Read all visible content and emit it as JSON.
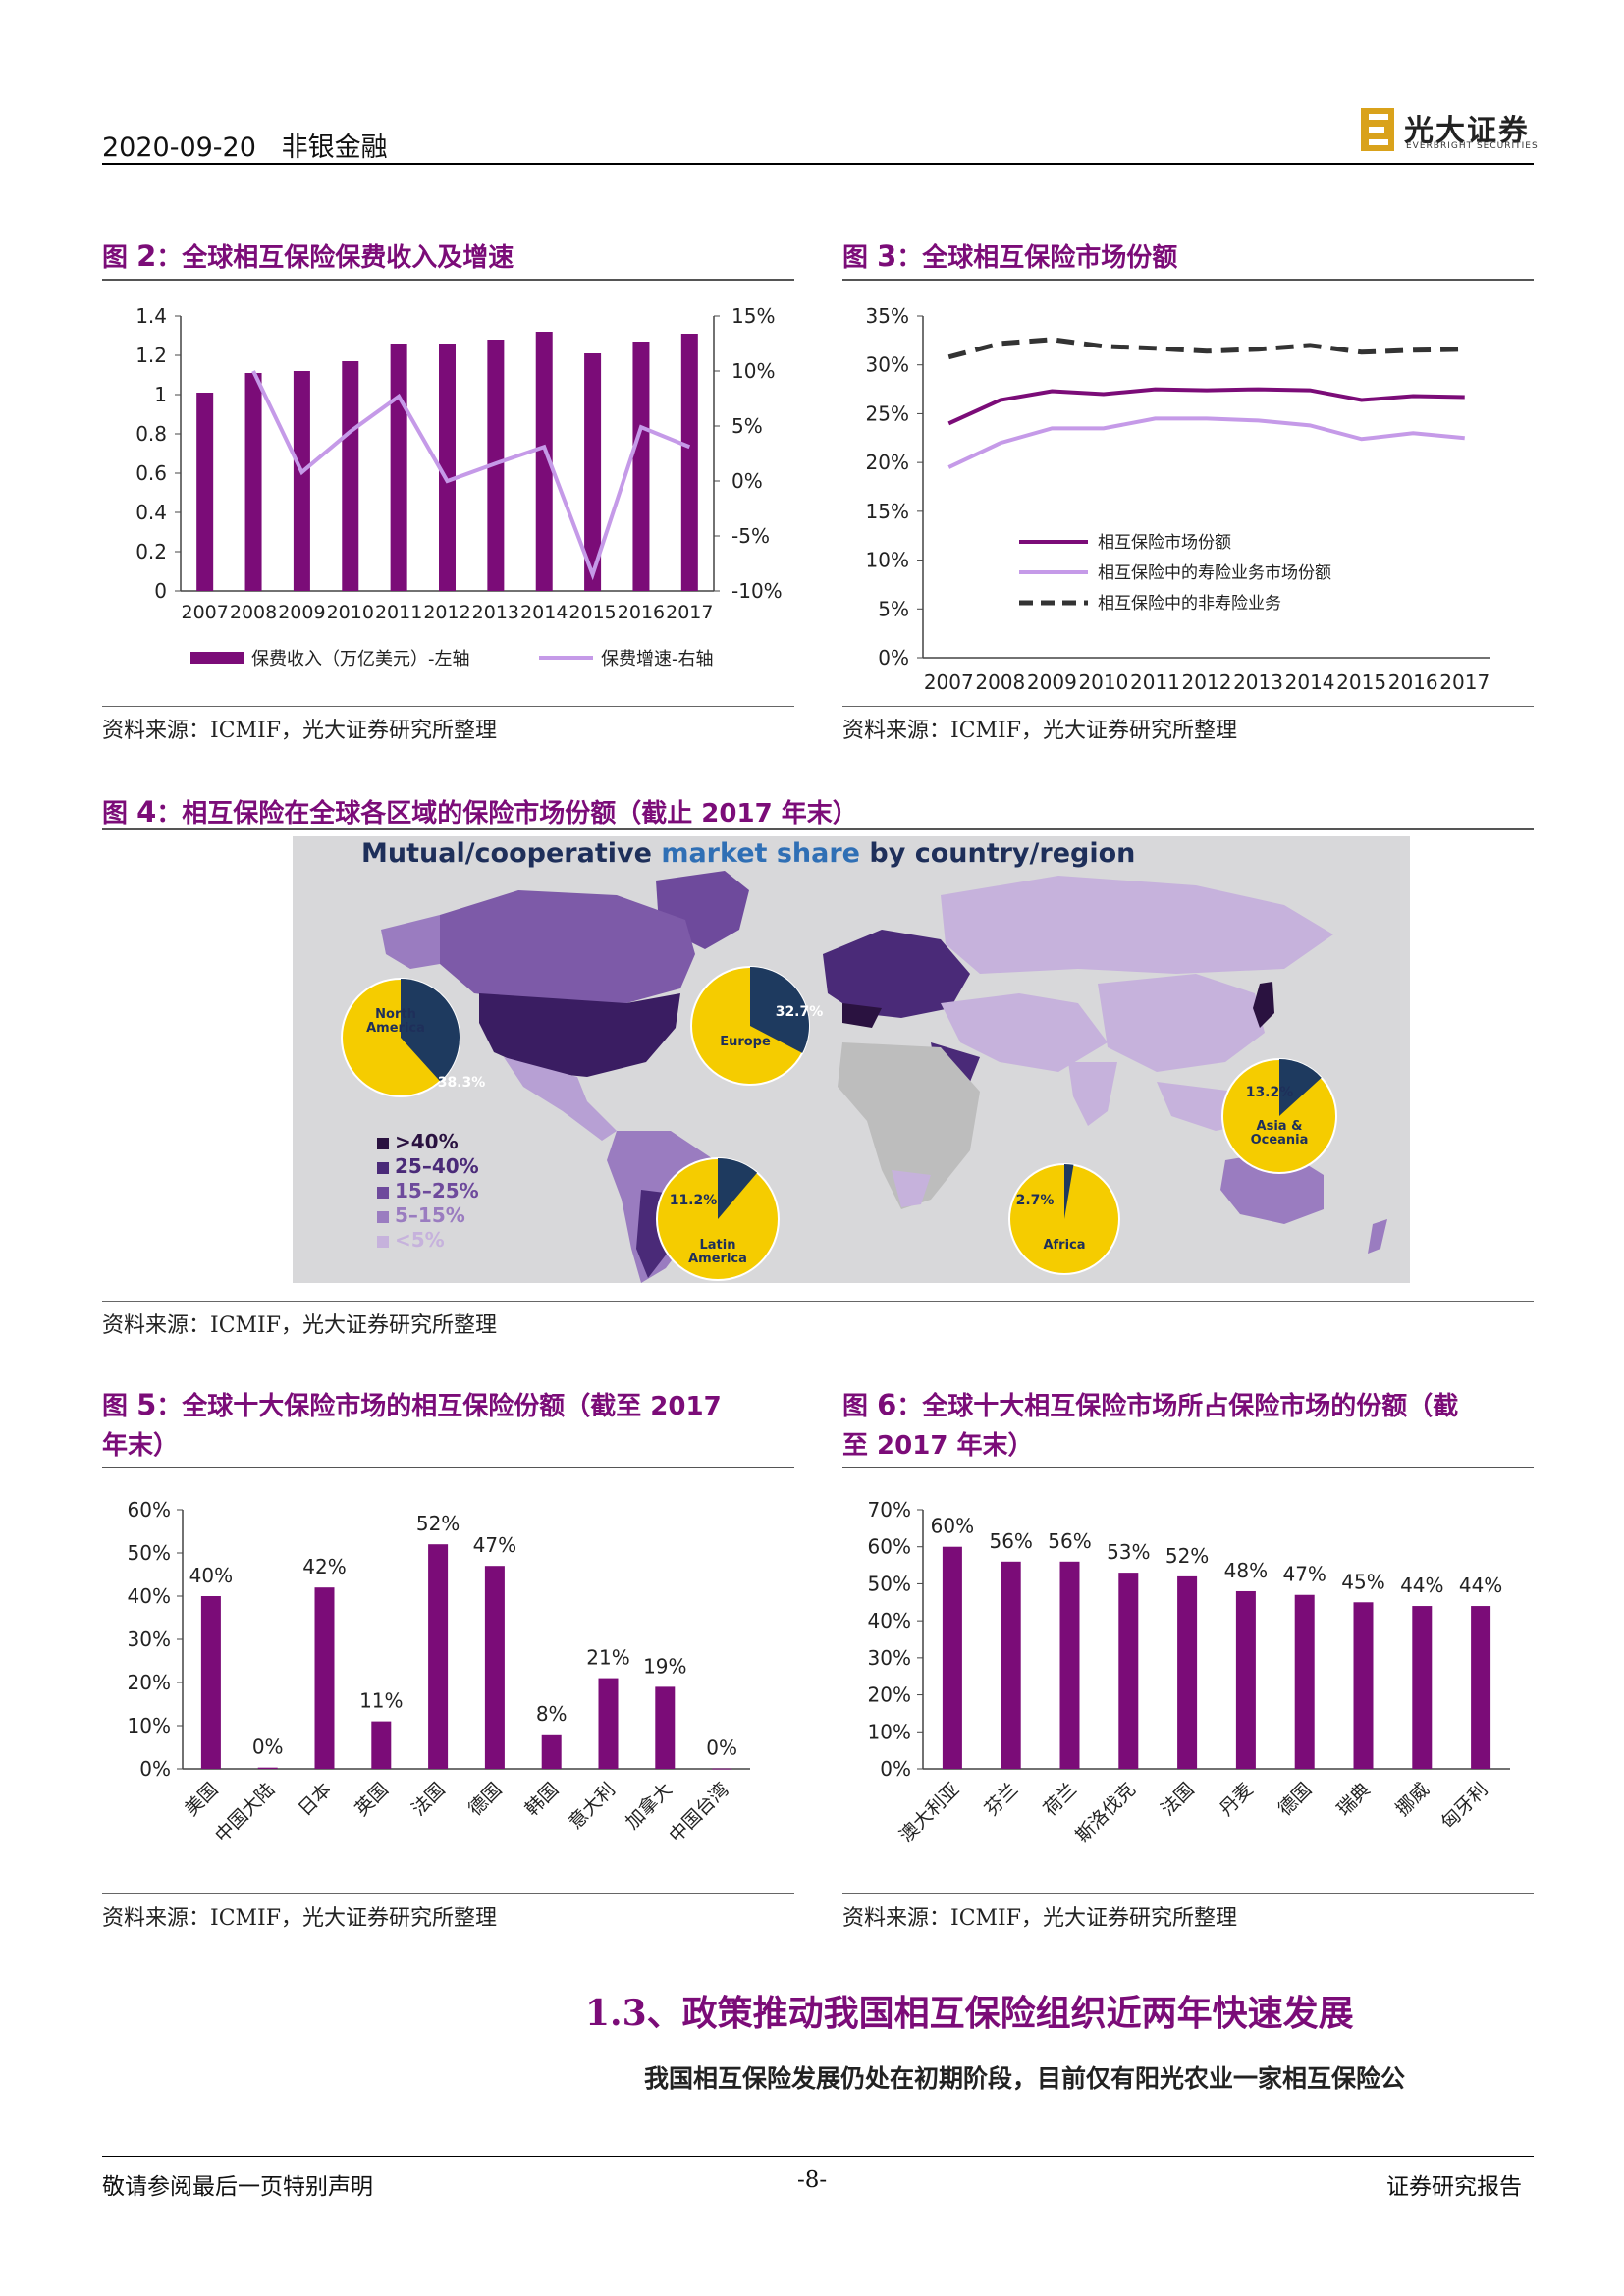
{
  "header": {
    "date": "2020-09-20",
    "section": "非银金融",
    "logo_cn": "光大证券",
    "logo_en": "EVERBRIGHT SECURITIES"
  },
  "fig2": {
    "label": "图 ",
    "num": "2",
    "title": "：全球相互保险保费收入及增速",
    "legend_bar": "保费收入（万亿美元）-左轴",
    "legend_line": "保费增速-右轴",
    "source": "资料来源：ICMIF，光大证券研究所整理"
  },
  "fig3": {
    "label": "图 ",
    "num": "3",
    "title": "：全球相互保险市场份额",
    "source": "资料来源：ICMIF，光大证券研究所整理"
  },
  "fig4": {
    "label": "图 ",
    "num": "4",
    "title": "：相互保险在全球各区域的保险市场份额（截止 2017 年末）",
    "map_title_a": "Mutual/cooperative ",
    "map_title_b": "market share",
    "map_title_c": " by country/region",
    "legend": [
      ">40%",
      "25–40%",
      "15–25%",
      "5–15%",
      "<5%"
    ],
    "legend_colors": [
      "#2a1240",
      "#4a2a78",
      "#6e4a9c",
      "#9a7cc0",
      "#c6b2dc"
    ],
    "pies": [
      {
        "region": "North America",
        "pct": "38.3%",
        "value": 38.3
      },
      {
        "region": "Europe",
        "pct": "32.7%",
        "value": 32.7
      },
      {
        "region": "Asia & Oceania",
        "pct": "13.2%",
        "value": 13.2
      },
      {
        "region": "Latin America",
        "pct": "11.2%",
        "value": 11.2
      },
      {
        "region": "Africa",
        "pct": "2.7%",
        "value": 2.7
      }
    ],
    "source": "资料来源：ICMIF，光大证券研究所整理"
  },
  "fig5": {
    "label": "图 ",
    "num": "5",
    "title_l1": "：全球十大保险市场的相互保险份额（截至 2017",
    "title_l2": "年末）",
    "source": "资料来源：ICMIF，光大证券研究所整理"
  },
  "fig6": {
    "label": "图 ",
    "num": "6",
    "title_l1": "：全球十大相互保险市场所占保险市场的份额（截",
    "title_l2": "至 2017 年末）",
    "source": "资料来源：ICMIF，光大证券研究所整理"
  },
  "section": {
    "title": "1.3、政策推动我国相互保险组织近两年快速发展"
  },
  "body": {
    "para": "我国相互保险发展仍处在初期阶段，目前仅有阳光农业一家相互保险公"
  },
  "footer": {
    "left": "敬请参阅最后一页特别声明",
    "page": "-8-",
    "right": "证券研究报告"
  },
  "colors": {
    "bar": "#7b0c78",
    "line_light": "#c59ae8",
    "dashed": "#333333",
    "title": "#7b0c78",
    "pie_navy": "#1e3a5f",
    "pie_yellow": "#f5cc00"
  },
  "chart_data": [
    {
      "id": "fig2",
      "type": "bar",
      "categories": [
        "2007",
        "2008",
        "2009",
        "2010",
        "2011",
        "2012",
        "2013",
        "2014",
        "2015",
        "2016",
        "2017"
      ],
      "series": [
        {
          "name": "保费收入（万亿美元）-左轴",
          "type": "bar",
          "axis": "left",
          "values": [
            1.01,
            1.11,
            1.12,
            1.17,
            1.26,
            1.26,
            1.28,
            1.32,
            1.21,
            1.27,
            1.31
          ]
        },
        {
          "name": "保费增速-右轴",
          "type": "line",
          "axis": "right",
          "values": [
            null,
            10,
            0.8,
            4.5,
            7.7,
            0,
            1.6,
            3.1,
            -8.5,
            4.9,
            3.1
          ]
        }
      ],
      "ylim_left": [
        0,
        1.4
      ],
      "yticks_left": [
        "0",
        "0.2",
        "0.4",
        "0.6",
        "0.8",
        "1",
        "1.2",
        "1.4"
      ],
      "ylim_right": [
        -10,
        15
      ],
      "yticks_right": [
        "-10%",
        "-5%",
        "0%",
        "5%",
        "10%",
        "15%"
      ]
    },
    {
      "id": "fig3",
      "type": "line",
      "categories": [
        "2007",
        "2008",
        "2009",
        "2010",
        "2011",
        "2012",
        "2013",
        "2014",
        "2015",
        "2016",
        "2017"
      ],
      "series": [
        {
          "name": "相互保险市场份额",
          "values": [
            24,
            26.4,
            27.3,
            27,
            27.5,
            27.4,
            27.5,
            27.4,
            26.4,
            26.8,
            26.7
          ]
        },
        {
          "name": "相互保险中的寿险业务市场份额",
          "values": [
            19.5,
            22,
            23.5,
            23.5,
            24.5,
            24.5,
            24.3,
            23.8,
            22.4,
            23,
            22.5
          ]
        },
        {
          "name": "相互保险中的非寿险业务",
          "values": [
            30.8,
            32.2,
            32.6,
            31.9,
            31.7,
            31.4,
            31.6,
            32,
            31.3,
            31.5,
            31.6
          ]
        }
      ],
      "ylim": [
        0,
        35
      ],
      "yticks": [
        "0%",
        "5%",
        "10%",
        "15%",
        "20%",
        "25%",
        "30%",
        "35%"
      ]
    },
    {
      "id": "fig5",
      "type": "bar",
      "categories": [
        "美国",
        "中国大陆",
        "日本",
        "英国",
        "法国",
        "德国",
        "韩国",
        "意大利",
        "加拿大",
        "中国台湾"
      ],
      "values": [
        40,
        0.3,
        42,
        11,
        52,
        47,
        8,
        21,
        19,
        0.1
      ],
      "labels": [
        "40%",
        "0%",
        "42%",
        "11%",
        "52%",
        "47%",
        "8%",
        "21%",
        "19%",
        "0%"
      ],
      "ylim": [
        0,
        60
      ],
      "yticks": [
        "0%",
        "10%",
        "20%",
        "30%",
        "40%",
        "50%",
        "60%"
      ]
    },
    {
      "id": "fig6",
      "type": "bar",
      "categories": [
        "澳大利亚",
        "芬兰",
        "荷兰",
        "斯洛伐克",
        "法国",
        "丹麦",
        "德国",
        "瑞典",
        "挪威",
        "匈牙利"
      ],
      "values": [
        60,
        56,
        56,
        53,
        52,
        48,
        47,
        45,
        44,
        44
      ],
      "labels": [
        "60%",
        "56%",
        "56%",
        "53%",
        "52%",
        "48%",
        "47%",
        "45%",
        "44%",
        "44%"
      ],
      "ylim": [
        0,
        70
      ],
      "yticks": [
        "0%",
        "10%",
        "20%",
        "30%",
        "40%",
        "50%",
        "60%",
        "70%"
      ]
    }
  ]
}
